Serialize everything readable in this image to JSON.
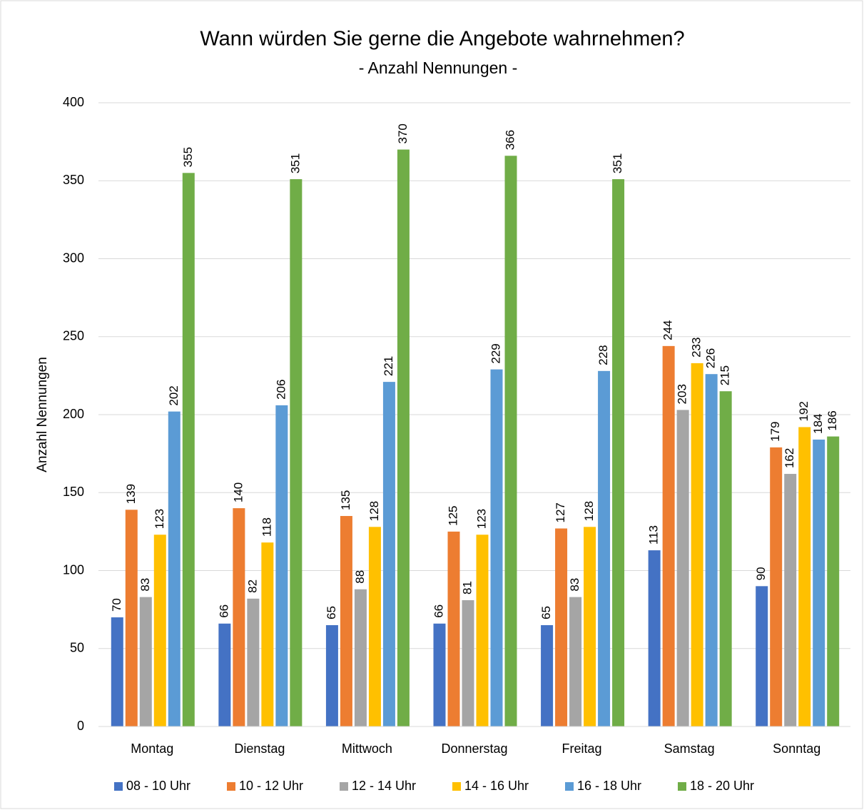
{
  "chart_data": {
    "type": "bar",
    "title": "Wann würden Sie gerne die Angebote wahrnehmen?",
    "subtitle": "- Anzahl Nennungen -",
    "y_label": "Anzahl Nennungen",
    "categories": [
      "Montag",
      "Dienstag",
      "Mittwoch",
      "Donnerstag",
      "Freitag",
      "Samstag",
      "Sonntag"
    ],
    "series": [
      {
        "name": "08 - 10 Uhr",
        "color": "#4472c4",
        "values": [
          70,
          66,
          65,
          66,
          65,
          113,
          90
        ]
      },
      {
        "name": "10 - 12 Uhr",
        "color": "#ed7d31",
        "values": [
          139,
          140,
          135,
          125,
          127,
          244,
          179
        ]
      },
      {
        "name": "12 - 14 Uhr",
        "color": "#a5a5a5",
        "values": [
          83,
          82,
          88,
          81,
          83,
          203,
          162
        ]
      },
      {
        "name": "14 - 16 Uhr",
        "color": "#ffc000",
        "values": [
          123,
          118,
          128,
          123,
          128,
          233,
          192
        ]
      },
      {
        "name": "16 - 18 Uhr",
        "color": "#5b9bd5",
        "values": [
          202,
          206,
          221,
          229,
          228,
          226,
          184
        ]
      },
      {
        "name": "18 - 20 Uhr",
        "color": "#70ad47",
        "values": [
          355,
          351,
          370,
          366,
          351,
          215,
          186
        ]
      }
    ],
    "ylim": [
      0,
      400
    ],
    "yticks": [
      0,
      50,
      100,
      150,
      200,
      250,
      300,
      350,
      400
    ],
    "grid": true,
    "legend": "bottom"
  }
}
